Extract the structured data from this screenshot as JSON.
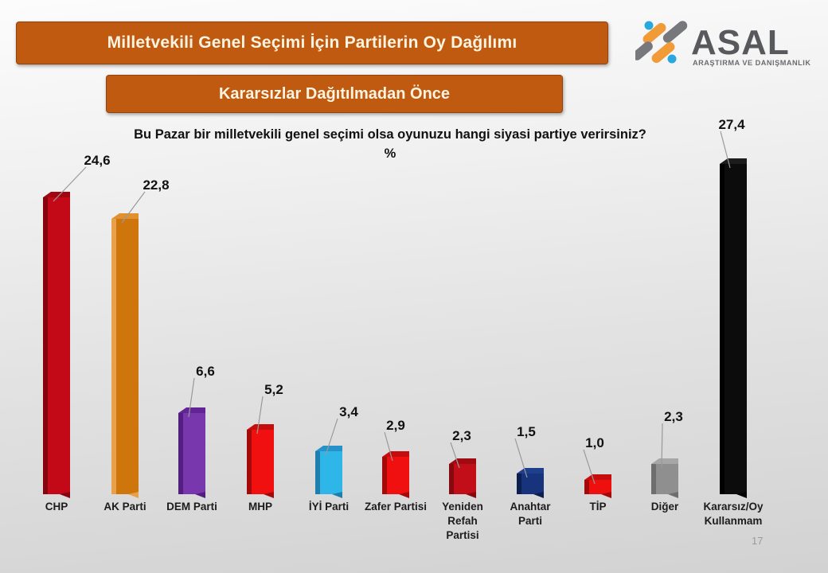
{
  "header": {
    "title": "Milletvekili Genel Seçimi İçin Partilerin Oy Dağılımı",
    "subtitle_banner": "Kararsızlar Dağıtılmadan Önce"
  },
  "logo": {
    "name": "ASAL",
    "subtitle": "ARAŞTIRMA VE DANIŞMANLIK",
    "colors": {
      "orange": "#F09A38",
      "gray": "#77787C",
      "blue": "#29A8DF",
      "text": "#58595D",
      "subtext": "#6B6C70"
    }
  },
  "question": {
    "line1": "Bu Pazar bir milletvekili genel seçimi olsa oyunuzu hangi siyasi partiye verirsiniz?",
    "line2": "%"
  },
  "page_number": "17",
  "theme": {
    "banner_bg": "#C05A11",
    "banner_text": "#FCF4E0",
    "leader_line": "#999999",
    "value_label_color": "#111111",
    "category_label_color": "#1c1c1c"
  },
  "chart_data": {
    "type": "bar",
    "orientation": "vertical",
    "unit": "%",
    "title": "Bu Pazar bir milletvekili genel seçimi olsa oyunuzu hangi siyasi partiye verirsiniz? %",
    "grid": false,
    "legend": false,
    "ylim": [
      0,
      30
    ],
    "categories": [
      "CHP",
      "AK Parti",
      "DEM Parti",
      "MHP",
      "İYİ Parti",
      "Zafer Partisi",
      "Yeniden Refah Partisi",
      "Anahtar Parti",
      "TİP",
      "Diğer",
      "Kararsız/Oy Kullanmam"
    ],
    "category_lines": [
      [
        "CHP"
      ],
      [
        "AK Parti"
      ],
      [
        "DEM Parti"
      ],
      [
        "MHP"
      ],
      [
        "İYİ Parti"
      ],
      [
        "Zafer Partisi"
      ],
      [
        "Yeniden",
        "Refah",
        "Partisi"
      ],
      [
        "Anahtar",
        "Parti"
      ],
      [
        "TİP"
      ],
      [
        "Diğer"
      ],
      [
        "Kararsız/Oy",
        "Kullanmam"
      ]
    ],
    "values": [
      24.6,
      22.8,
      6.6,
      5.2,
      3.4,
      2.9,
      2.3,
      1.5,
      1.0,
      2.3,
      27.4
    ],
    "value_labels": [
      "24,6",
      "22,8",
      "6,6",
      "5,2",
      "3,4",
      "2,9",
      "2,3",
      "1,5",
      "1,0",
      "2,3",
      "27,4"
    ],
    "bar_colors": [
      {
        "front": "#C30917",
        "top": "#A00713",
        "edge": "#85040E"
      },
      {
        "front": "#CE750C",
        "top": "#E0902F",
        "edge": "#E8A04A"
      },
      {
        "front": "#7937AE",
        "top": "#632596",
        "edge": "#521F80"
      },
      {
        "front": "#F01010",
        "top": "#C60D0D",
        "edge": "#A50A0A"
      },
      {
        "front": "#2EB6E9",
        "top": "#2593C9",
        "edge": "#1E7FAD"
      },
      {
        "front": "#F01010",
        "top": "#C60D0D",
        "edge": "#A50A0A"
      },
      {
        "front": "#C20E18",
        "top": "#A00B13",
        "edge": "#870910"
      },
      {
        "front": "#16337C",
        "top": "#1E3E8E",
        "edge": "#0D1F4F"
      },
      {
        "front": "#EE0F0F",
        "top": "#C60D0D",
        "edge": "#A50A0A"
      },
      {
        "front": "#8F8F8F",
        "top": "#A6A6A6",
        "edge": "#6E6E6E"
      },
      {
        "front": "#0C0C0C",
        "top": "#1C1C1C",
        "edge": "#000000"
      }
    ]
  }
}
